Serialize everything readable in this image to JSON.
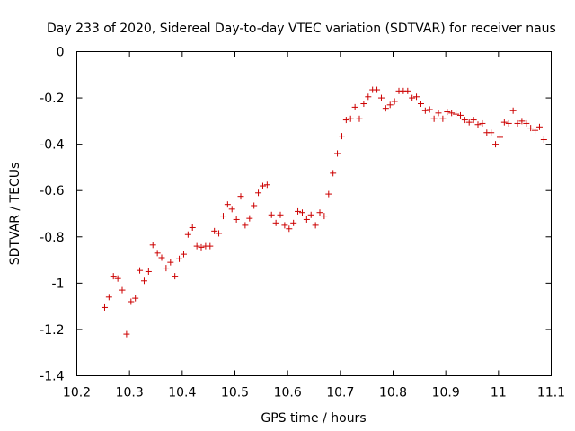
{
  "chart_data": {
    "type": "scatter",
    "title": "Day 233 of 2020, Sidereal Day-to-day VTEC variation (SDTVAR) for receiver naus",
    "xlabel": "GPS time / hours",
    "ylabel": "SDTVAR / TECUs",
    "xlim": [
      10.2,
      11.1
    ],
    "ylim": [
      -1.4,
      0
    ],
    "xticks": [
      10.2,
      10.3,
      10.4,
      10.5,
      10.6,
      10.7,
      10.8,
      10.9,
      11,
      11.1
    ],
    "xtick_labels": [
      "10.2",
      "10.3",
      "10.4",
      "10.5",
      "10.6",
      "10.7",
      "10.8",
      "10.9",
      "11",
      "11.1"
    ],
    "yticks": [
      0,
      -0.2,
      -0.4,
      -0.6,
      -0.8,
      -1,
      -1.2,
      -1.4
    ],
    "ytick_labels": [
      "0",
      "-0.2",
      "-0.4",
      "-0.6",
      "-0.8",
      "-1",
      "-1.2",
      "-1.4"
    ],
    "marker": "+",
    "color": "#cc0000",
    "grid": false,
    "x": [
      10.2528,
      10.2611,
      10.2694,
      10.2778,
      10.2861,
      10.2944,
      10.3028,
      10.3111,
      10.3194,
      10.3278,
      10.3361,
      10.3444,
      10.3528,
      10.3611,
      10.3694,
      10.3778,
      10.3861,
      10.3944,
      10.4028,
      10.4111,
      10.4194,
      10.4278,
      10.4361,
      10.4444,
      10.4528,
      10.4611,
      10.4694,
      10.4778,
      10.4861,
      10.4944,
      10.5028,
      10.5111,
      10.5194,
      10.5278,
      10.5361,
      10.5444,
      10.5528,
      10.5611,
      10.5694,
      10.5778,
      10.5861,
      10.5944,
      10.6028,
      10.6111,
      10.6194,
      10.6278,
      10.6361,
      10.6444,
      10.6528,
      10.6611,
      10.6694,
      10.6778,
      10.6861,
      10.6944,
      10.7028,
      10.7111,
      10.7194,
      10.7278,
      10.7361,
      10.7444,
      10.7528,
      10.7611,
      10.7694,
      10.7778,
      10.7861,
      10.7944,
      10.8028,
      10.8111,
      10.8194,
      10.8278,
      10.8361,
      10.8444,
      10.8528,
      10.8611,
      10.8694,
      10.8778,
      10.8861,
      10.8944,
      10.9028,
      10.9111,
      10.9194,
      10.9278,
      10.9361,
      10.9444,
      10.9528,
      10.9611,
      10.9694,
      10.9778,
      10.9861,
      10.9944,
      11.0028,
      11.0111,
      11.0194,
      11.0278,
      11.0361,
      11.0444,
      11.0528,
      11.0611,
      11.0694,
      11.0778,
      11.0861
    ],
    "y": [
      -1.105,
      -1.06,
      -0.97,
      -0.98,
      -1.03,
      -1.22,
      -1.08,
      -1.065,
      -0.945,
      -0.99,
      -0.95,
      -0.835,
      -0.87,
      -0.89,
      -0.935,
      -0.91,
      -0.97,
      -0.895,
      -0.875,
      -0.79,
      -0.76,
      -0.84,
      -0.845,
      -0.84,
      -0.84,
      -0.775,
      -0.785,
      -0.71,
      -0.66,
      -0.68,
      -0.725,
      -0.625,
      -0.75,
      -0.72,
      -0.665,
      -0.61,
      -0.58,
      -0.575,
      -0.705,
      -0.74,
      -0.705,
      -0.75,
      -0.765,
      -0.74,
      -0.69,
      -0.695,
      -0.725,
      -0.705,
      -0.75,
      -0.695,
      -0.71,
      -0.615,
      -0.525,
      -0.44,
      -0.365,
      -0.295,
      -0.29,
      -0.24,
      -0.29,
      -0.225,
      -0.195,
      -0.165,
      -0.165,
      -0.2,
      -0.245,
      -0.23,
      -0.215,
      -0.17,
      -0.17,
      -0.17,
      -0.2,
      -0.195,
      -0.225,
      -0.255,
      -0.25,
      -0.29,
      -0.265,
      -0.29,
      -0.26,
      -0.265,
      -0.27,
      -0.275,
      -0.295,
      -0.305,
      -0.295,
      -0.315,
      -0.31,
      -0.35,
      -0.35,
      -0.4,
      -0.37,
      -0.305,
      -0.31,
      -0.255,
      -0.31,
      -0.3,
      -0.31,
      -0.33,
      -0.34,
      -0.325,
      -0.38
    ]
  }
}
